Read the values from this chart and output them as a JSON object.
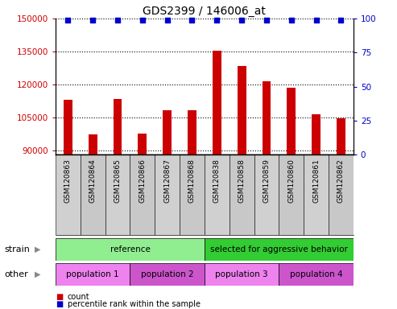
{
  "title": "GDS2399 / 146006_at",
  "samples": [
    "GSM120863",
    "GSM120864",
    "GSM120865",
    "GSM120866",
    "GSM120867",
    "GSM120868",
    "GSM120838",
    "GSM120858",
    "GSM120859",
    "GSM120860",
    "GSM120861",
    "GSM120862"
  ],
  "bar_values": [
    113000,
    97000,
    113500,
    97500,
    108000,
    108000,
    135500,
    128500,
    121500,
    118500,
    106500,
    104500
  ],
  "bar_color": "#cc0000",
  "percentile_color": "#0000cc",
  "ylim_left": [
    88000,
    150000
  ],
  "ylim_right": [
    0,
    100
  ],
  "yticks_left": [
    90000,
    105000,
    120000,
    135000,
    150000
  ],
  "yticks_right": [
    0,
    25,
    50,
    75,
    100
  ],
  "strain_groups": [
    {
      "label": "reference",
      "start": 0,
      "end": 6,
      "color": "#90ee90"
    },
    {
      "label": "selected for aggressive behavior",
      "start": 6,
      "end": 12,
      "color": "#32cd32"
    }
  ],
  "other_groups": [
    {
      "label": "population 1",
      "start": 0,
      "end": 3,
      "color": "#ee82ee"
    },
    {
      "label": "population 2",
      "start": 3,
      "end": 6,
      "color": "#cc55cc"
    },
    {
      "label": "population 3",
      "start": 6,
      "end": 9,
      "color": "#ee82ee"
    },
    {
      "label": "population 4",
      "start": 9,
      "end": 12,
      "color": "#cc55cc"
    }
  ],
  "legend_count_color": "#cc0000",
  "legend_percentile_color": "#0000cc",
  "bar_width": 0.35,
  "tick_label_color_left": "#cc0000",
  "tick_label_color_right": "#0000cc",
  "background_color": "#ffffff",
  "axis_bg_color": "#ffffff",
  "title_fontsize": 10
}
